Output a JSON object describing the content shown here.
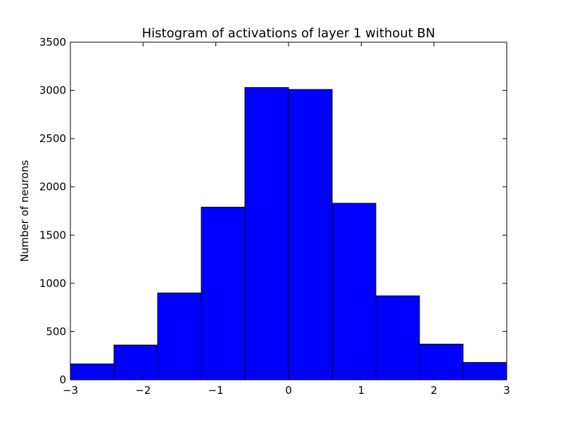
{
  "chart_data": {
    "type": "bar",
    "title": "Histogram of activations of layer 1  without BN",
    "xlabel": "",
    "ylabel": "Number of neurons",
    "xlim": [
      -3,
      3
    ],
    "ylim": [
      0,
      3500
    ],
    "bin_edges": [
      -3,
      -2.4,
      -1.8,
      -1.2,
      -0.6,
      0,
      0.6,
      1.2,
      1.8,
      2.4,
      3
    ],
    "values": [
      165,
      360,
      900,
      1790,
      3030,
      3010,
      1830,
      870,
      370,
      180
    ],
    "x_ticks": [
      -3,
      -2,
      -1,
      0,
      1,
      2,
      3
    ],
    "x_tick_labels": [
      "−3",
      "−2",
      "−1",
      "0",
      "1",
      "2",
      "3"
    ],
    "y_ticks": [
      0,
      500,
      1000,
      1500,
      2000,
      2500,
      3000,
      3500
    ],
    "y_tick_labels": [
      "0",
      "500",
      "1000",
      "1500",
      "2000",
      "2500",
      "3000",
      "3500"
    ],
    "bar_color": "#0000ff",
    "edge_color": "#000000",
    "grid": false,
    "legend": "none"
  }
}
